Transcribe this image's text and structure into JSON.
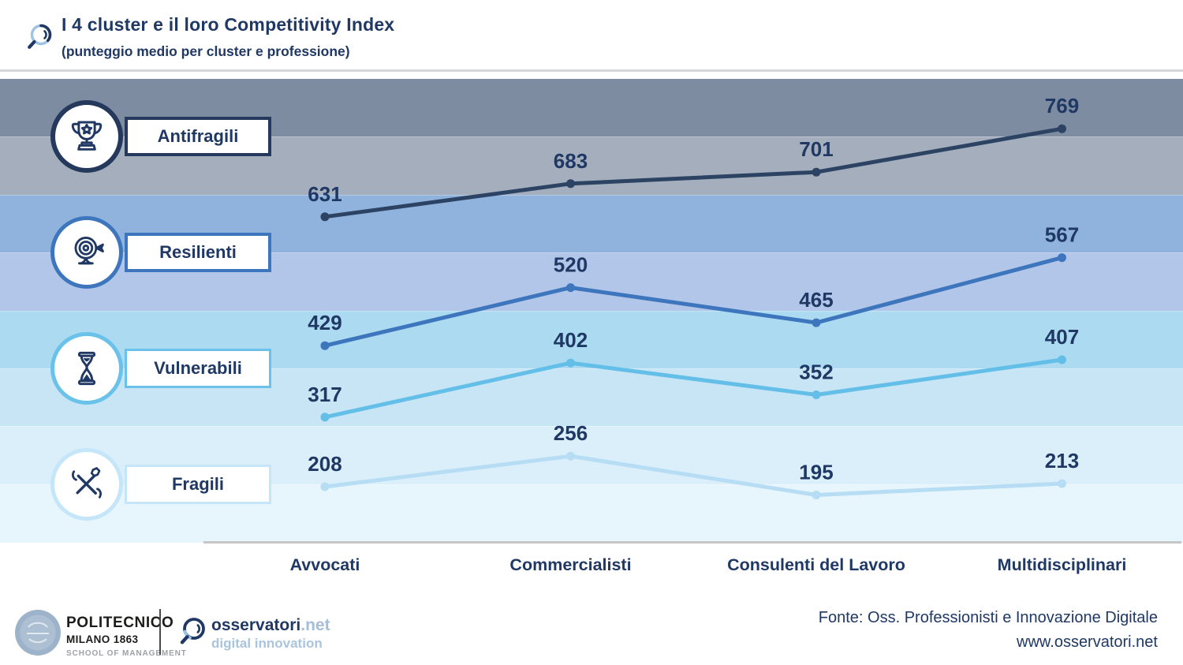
{
  "header": {
    "title": "I 4 cluster e il loro Competitivity Index",
    "subtitle": "(punteggio medio per cluster e professione)",
    "logo_icon": "magnifier-icon"
  },
  "chart_data": {
    "type": "line",
    "title": "I 4 cluster e il loro Competitivity Index",
    "subtitle": "(punteggio medio per cluster e professione)",
    "categories": [
      "Avvocati",
      "Commercialisti",
      "Consulenti del Lavoro",
      "Multidisciplinari"
    ],
    "series": [
      {
        "name": "Antifragili",
        "icon": "trophy-icon",
        "color": "#2c4363",
        "badge_border": "#24395c",
        "values": [
          631,
          683,
          701,
          769
        ]
      },
      {
        "name": "Resilienti",
        "icon": "target-icon",
        "color": "#3d76bd",
        "badge_border": "#3d76bd",
        "values": [
          429,
          520,
          465,
          567
        ]
      },
      {
        "name": "Vulnerabili",
        "icon": "hourglass-icon",
        "color": "#63bfe8",
        "badge_border": "#6ac2ea",
        "values": [
          317,
          402,
          352,
          407
        ]
      },
      {
        "name": "Fragili",
        "icon": "tools-icon",
        "color": "#b6ddf4",
        "badge_border": "#c4e6f8",
        "values": [
          208,
          256,
          195,
          213
        ]
      }
    ],
    "xlabel": "",
    "ylabel": "",
    "grid": false,
    "legend_position": "left",
    "value_labels": true,
    "label_color": "#1f3864",
    "background_bands": [
      "#7e8ca2",
      "#a4aebd",
      "#90b3de",
      "#b1c6e8",
      "#acdaf1",
      "#c8e5f6",
      "#dbeffb",
      "#e7f5fd"
    ]
  },
  "footer": {
    "politecnico": {
      "line1": "POLITECNICO",
      "line2": "MILANO 1863",
      "line3": "SCHOOL OF MANAGEMENT"
    },
    "osservatori": {
      "name_main": "osservatori",
      "name_suffix": ".net",
      "tagline": "digital innovation"
    },
    "source_line1": "Fonte: Oss. Professionisti e Innovazione Digitale",
    "source_line2": "www.osservatori.net"
  }
}
